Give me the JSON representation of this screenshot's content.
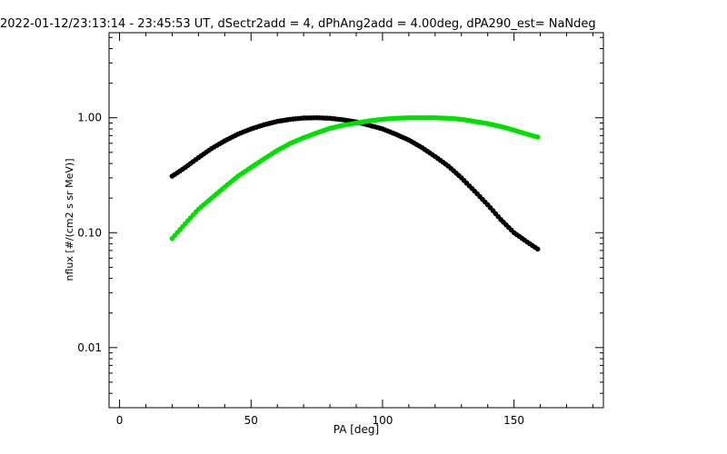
{
  "chart_data": {
    "type": "scatter",
    "title": "2022-01-12/23:13:14 - 23:45:53 UT, dSectr2add = 4, dPhAng2add = 4.00deg, dPA290_est=    NaNdeg",
    "xlabel": "PA [deg]",
    "ylabel": "nflux [#/(cm2 s sr MeV)]",
    "xlim": [
      -4,
      184
    ],
    "ylim": [
      0.003,
      5.5
    ],
    "yscale": "log",
    "grid": false,
    "xticks": [
      {
        "value": 0,
        "label": "0"
      },
      {
        "value": 50,
        "label": "50"
      },
      {
        "value": 100,
        "label": "100"
      },
      {
        "value": 150,
        "label": "150"
      }
    ],
    "yticks": [
      {
        "value": 0.01,
        "label": "0.01"
      },
      {
        "value": 0.1,
        "label": "0.10"
      },
      {
        "value": 1,
        "label": "1.00"
      }
    ],
    "series": [
      {
        "color": "#000000",
        "x": [
          20,
          25,
          30,
          35,
          40,
          45,
          50,
          55,
          60,
          65,
          70,
          75,
          80,
          85,
          90,
          95,
          100,
          105,
          110,
          115,
          120,
          125,
          130,
          135,
          140,
          145,
          150,
          155,
          159
        ],
        "values": [
          0.31,
          0.37,
          0.45,
          0.54,
          0.63,
          0.72,
          0.8,
          0.87,
          0.93,
          0.97,
          0.995,
          1.0,
          0.99,
          0.96,
          0.92,
          0.86,
          0.8,
          0.72,
          0.64,
          0.55,
          0.46,
          0.38,
          0.3,
          0.23,
          0.175,
          0.13,
          0.1,
          0.083,
          0.072
        ]
      },
      {
        "color": "#00e000",
        "x": [
          20,
          25,
          30,
          35,
          40,
          45,
          50,
          55,
          60,
          65,
          70,
          75,
          80,
          85,
          90,
          95,
          100,
          105,
          110,
          115,
          120,
          125,
          130,
          135,
          140,
          145,
          150,
          155,
          159
        ],
        "values": [
          0.089,
          0.12,
          0.16,
          0.2,
          0.25,
          0.31,
          0.37,
          0.44,
          0.52,
          0.6,
          0.67,
          0.74,
          0.81,
          0.86,
          0.9,
          0.94,
          0.97,
          0.99,
          1.0,
          1.0,
          1.0,
          0.99,
          0.97,
          0.93,
          0.89,
          0.84,
          0.78,
          0.72,
          0.68
        ]
      }
    ]
  }
}
